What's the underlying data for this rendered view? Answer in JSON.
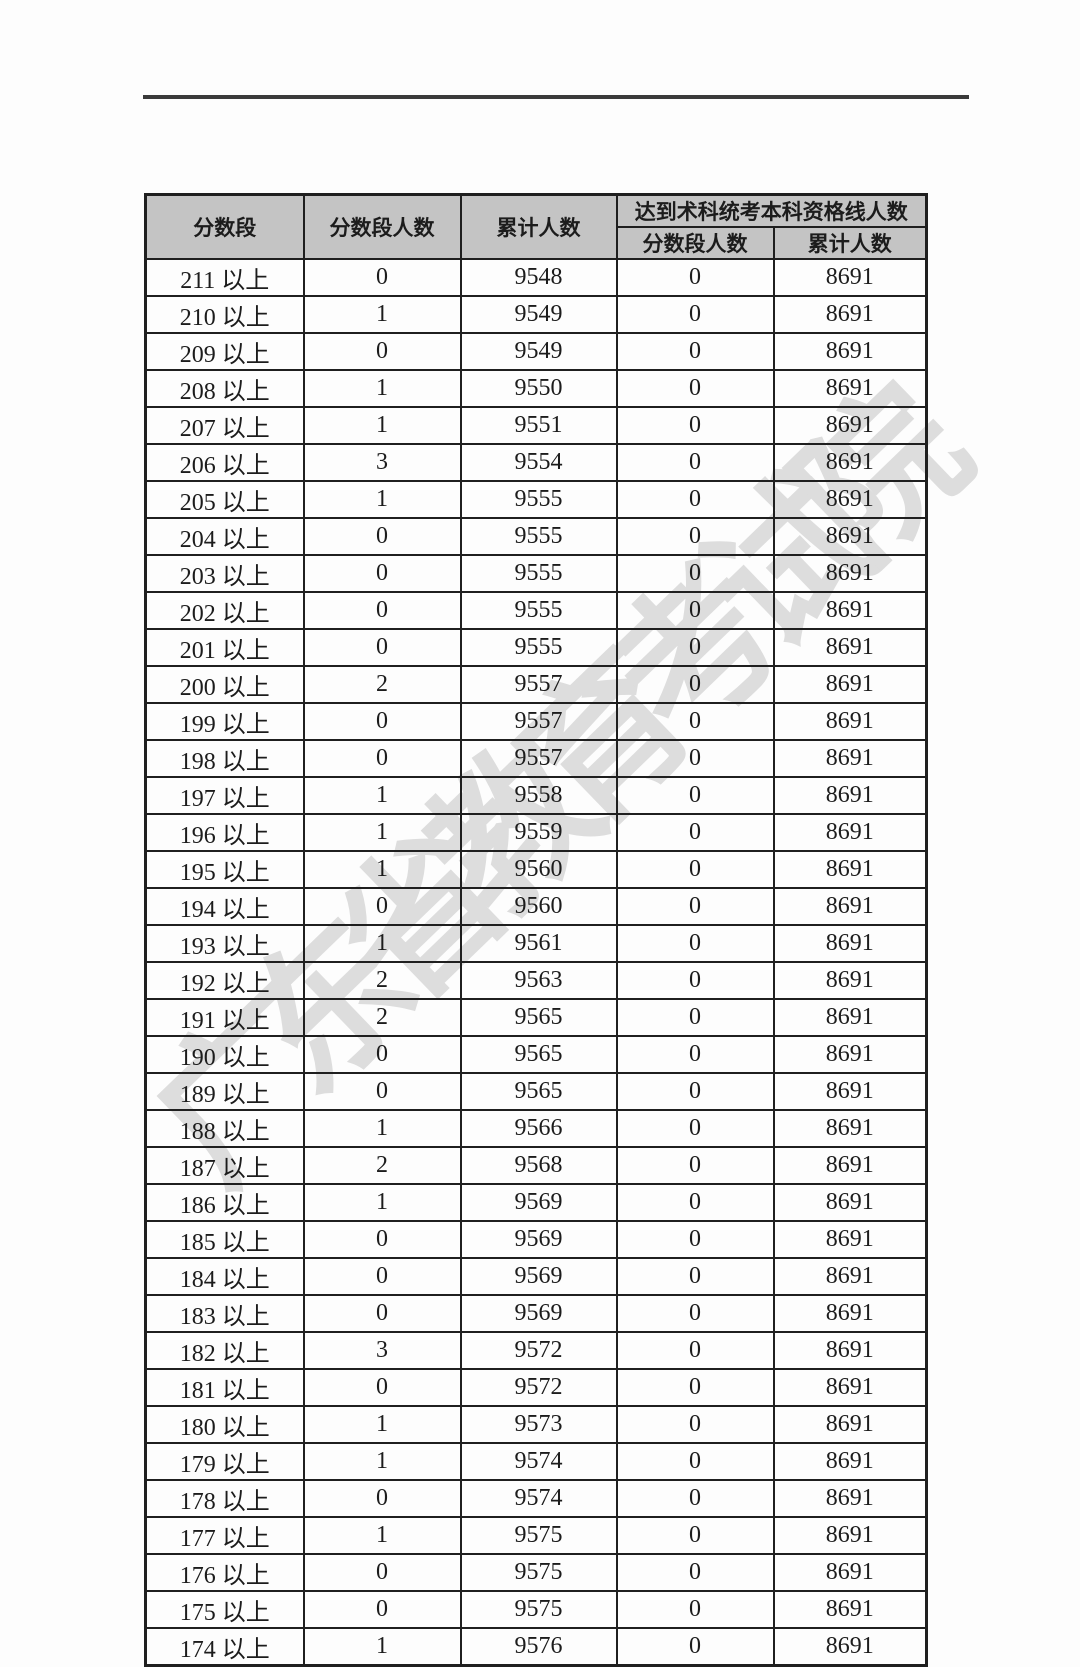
{
  "page": {
    "background_color": "#fdfdfd",
    "rule_color": "#3a3a3a"
  },
  "watermark": {
    "text": "广东省教育考试院",
    "color": "#c3c3c3"
  },
  "table": {
    "border_color": "#1f1f1f",
    "header_bg": "#c4c4c4",
    "header": {
      "col_score_range": "分数段",
      "col_seg_count": "分数段人数",
      "col_cum_count": "累计人数",
      "group_qualified": "达到术科统考本科资格线人数",
      "sub_seg_count": "分数段人数",
      "sub_cum_count": "累计人数"
    },
    "columns": [
      "分数段",
      "分数段人数",
      "累计人数",
      "达到术科统考本科资格线人数-分数段人数",
      "达到术科统考本科资格线人数-累计人数"
    ],
    "rows": [
      [
        "211 以上",
        "0",
        "9548",
        "0",
        "8691"
      ],
      [
        "210 以上",
        "1",
        "9549",
        "0",
        "8691"
      ],
      [
        "209 以上",
        "0",
        "9549",
        "0",
        "8691"
      ],
      [
        "208 以上",
        "1",
        "9550",
        "0",
        "8691"
      ],
      [
        "207 以上",
        "1",
        "9551",
        "0",
        "8691"
      ],
      [
        "206 以上",
        "3",
        "9554",
        "0",
        "8691"
      ],
      [
        "205 以上",
        "1",
        "9555",
        "0",
        "8691"
      ],
      [
        "204 以上",
        "0",
        "9555",
        "0",
        "8691"
      ],
      [
        "203 以上",
        "0",
        "9555",
        "0",
        "8691"
      ],
      [
        "202 以上",
        "0",
        "9555",
        "0",
        "8691"
      ],
      [
        "201 以上",
        "0",
        "9555",
        "0",
        "8691"
      ],
      [
        "200 以上",
        "2",
        "9557",
        "0",
        "8691"
      ],
      [
        "199 以上",
        "0",
        "9557",
        "0",
        "8691"
      ],
      [
        "198 以上",
        "0",
        "9557",
        "0",
        "8691"
      ],
      [
        "197 以上",
        "1",
        "9558",
        "0",
        "8691"
      ],
      [
        "196 以上",
        "1",
        "9559",
        "0",
        "8691"
      ],
      [
        "195 以上",
        "1",
        "9560",
        "0",
        "8691"
      ],
      [
        "194 以上",
        "0",
        "9560",
        "0",
        "8691"
      ],
      [
        "193 以上",
        "1",
        "9561",
        "0",
        "8691"
      ],
      [
        "192 以上",
        "2",
        "9563",
        "0",
        "8691"
      ],
      [
        "191 以上",
        "2",
        "9565",
        "0",
        "8691"
      ],
      [
        "190 以上",
        "0",
        "9565",
        "0",
        "8691"
      ],
      [
        "189 以上",
        "0",
        "9565",
        "0",
        "8691"
      ],
      [
        "188 以上",
        "1",
        "9566",
        "0",
        "8691"
      ],
      [
        "187 以上",
        "2",
        "9568",
        "0",
        "8691"
      ],
      [
        "186 以上",
        "1",
        "9569",
        "0",
        "8691"
      ],
      [
        "185 以上",
        "0",
        "9569",
        "0",
        "8691"
      ],
      [
        "184 以上",
        "0",
        "9569",
        "0",
        "8691"
      ],
      [
        "183 以上",
        "0",
        "9569",
        "0",
        "8691"
      ],
      [
        "182 以上",
        "3",
        "9572",
        "0",
        "8691"
      ],
      [
        "181 以上",
        "0",
        "9572",
        "0",
        "8691"
      ],
      [
        "180 以上",
        "1",
        "9573",
        "0",
        "8691"
      ],
      [
        "179 以上",
        "1",
        "9574",
        "0",
        "8691"
      ],
      [
        "178 以上",
        "0",
        "9574",
        "0",
        "8691"
      ],
      [
        "177 以上",
        "1",
        "9575",
        "0",
        "8691"
      ],
      [
        "176 以上",
        "0",
        "9575",
        "0",
        "8691"
      ],
      [
        "175 以上",
        "0",
        "9575",
        "0",
        "8691"
      ],
      [
        "174 以上",
        "1",
        "9576",
        "0",
        "8691"
      ]
    ]
  }
}
